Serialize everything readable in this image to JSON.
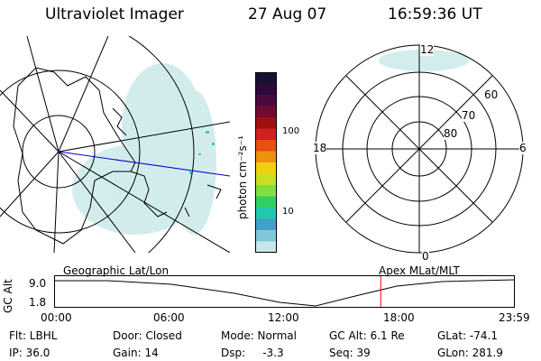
{
  "header": {
    "title": "Ultraviolet Imager",
    "date": "27 Aug 07",
    "time": "16:59:36 UT"
  },
  "colorbar": {
    "label": "photon cm⁻²s⁻¹",
    "ticks": [
      "100",
      "10"
    ],
    "colors": [
      "#1a1030",
      "#2e0a3a",
      "#4a0a40",
      "#700a30",
      "#a01010",
      "#d02020",
      "#e85010",
      "#f09010",
      "#f0d010",
      "#c8e020",
      "#80e040",
      "#30d060",
      "#20c8b0",
      "#40a0c8",
      "#80c8d8",
      "#c8e8e8"
    ]
  },
  "left_panel": {
    "label": "Geographic Lat/Lon"
  },
  "right_panel": {
    "label": "Apex MLat/MLT",
    "mlt_labels": {
      "top": "12",
      "left": "18",
      "right": "6",
      "bottom": "0"
    },
    "mlat_labels": [
      "60",
      "70",
      "80"
    ]
  },
  "timeline": {
    "ylabel": "GC Alt",
    "yticks": [
      "9.0",
      "1.8"
    ],
    "xticks": [
      "00:00",
      "06:00",
      "12:00",
      "18:00",
      "23:59"
    ],
    "marker_time_hours": 17.0,
    "marker_color": "#ff0000"
  },
  "info": {
    "flt": "Flt: LBHL",
    "ip": "IP: 36.0",
    "door": "Door: Closed",
    "gain": "Gain: 14",
    "mode": "Mode: Normal",
    "dsp": "Dsp:     -3.3",
    "gcalt": "GC Alt: 6.1 Re",
    "seq": "Seq: 39",
    "glat": "GLat: -74.1",
    "glon": "GLon: 281.9"
  }
}
